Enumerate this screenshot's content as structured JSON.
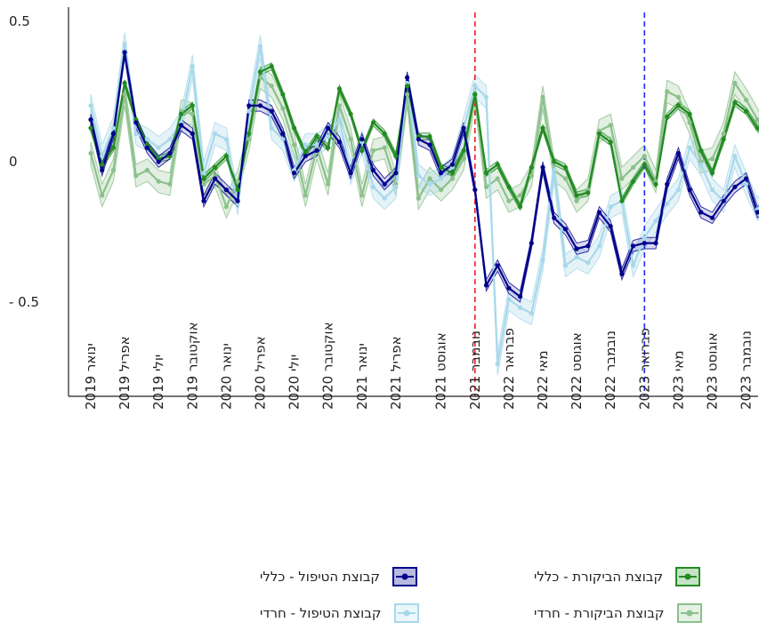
{
  "chart_data": {
    "type": "line",
    "title": "",
    "xlabel": "",
    "ylabel": "",
    "ylim": [
      -0.85,
      0.55
    ],
    "y_ticks": [
      {
        "value": 0.5,
        "label": "0.5"
      },
      {
        "value": 0,
        "label": "0"
      },
      {
        "value": -0.5,
        "label": "- 0.5"
      }
    ],
    "x_start": "2019-01",
    "x_tick_labels": [
      "ינואר 2019",
      "אפריל 2019",
      "יולי 2019",
      "אוקטובר 2019",
      "ינואר 2020",
      "אפריל 2020",
      "יולי 2020",
      "אוקטובר 2020",
      "ינואר 2021",
      "אפריל 2021",
      "אוגוסט 2021",
      "נובמבר 2021",
      "פברואר 2022",
      "מאי 2022",
      "אוגוסט 2022",
      "נובמבר 2022",
      "פברואר 2023",
      "מאי 2023",
      "אוגוסט 2023",
      "נובמבר 2023"
    ],
    "x_tick_months": [
      "2019-01",
      "2019-04",
      "2019-07",
      "2019-10",
      "2020-01",
      "2020-04",
      "2020-07",
      "2020-10",
      "2021-01",
      "2021-04",
      "2021-08",
      "2021-11",
      "2022-02",
      "2022-05",
      "2022-08",
      "2022-11",
      "2023-02",
      "2023-05",
      "2023-08",
      "2023-11"
    ],
    "vlines": [
      {
        "month": "2021-11",
        "color": "#e8202a"
      },
      {
        "month": "2023-02",
        "color": "#1f2bea"
      }
    ],
    "series": [
      {
        "name": "קבוצת הביקורת - כללי",
        "color": "#228b22",
        "band": "#228b22",
        "band_opacity": 0.18,
        "band_half": 0.012,
        "values": [
          0.12,
          -0.01,
          0.05,
          0.28,
          0.15,
          0.06,
          0.01,
          0.02,
          0.17,
          0.2,
          -0.06,
          -0.02,
          0.02,
          -0.1,
          0.1,
          0.32,
          0.34,
          0.24,
          0.12,
          0.03,
          0.09,
          0.05,
          0.26,
          0.17,
          0.04,
          0.14,
          0.1,
          0.02,
          0.27,
          0.09,
          0.09,
          -0.02,
          -0.04,
          0.04,
          0.24,
          -0.04,
          -0.01,
          -0.09,
          -0.16,
          -0.02,
          0.12,
          0.0,
          -0.02,
          -0.12,
          -0.11,
          0.1,
          0.07,
          -0.14,
          -0.07,
          -0.01,
          -0.08,
          0.16,
          0.2,
          0.17,
          0.04,
          -0.04,
          0.08,
          0.21,
          0.18,
          0.12,
          0.12
        ]
      },
      {
        "name": "קבוצת הביקורת - חרדי",
        "color": "#8cc08c",
        "band": "#8cc08c",
        "band_opacity": 0.25,
        "band_half": 0.04,
        "values": [
          0.03,
          -0.12,
          -0.03,
          0.24,
          -0.05,
          -0.03,
          -0.07,
          -0.08,
          0.18,
          0.17,
          -0.08,
          -0.05,
          -0.16,
          -0.07,
          0.08,
          0.3,
          0.27,
          0.19,
          0.06,
          -0.12,
          0.05,
          -0.08,
          0.2,
          0.08,
          -0.12,
          0.04,
          0.05,
          -0.08,
          0.24,
          -0.13,
          -0.06,
          -0.1,
          -0.06,
          0.01,
          0.24,
          -0.09,
          -0.06,
          -0.14,
          -0.12,
          -0.05,
          0.23,
          -0.03,
          -0.06,
          -0.14,
          -0.1,
          0.11,
          0.13,
          -0.06,
          -0.02,
          0.02,
          -0.07,
          0.25,
          0.23,
          0.14,
          0.0,
          0.01,
          0.1,
          0.28,
          0.22,
          0.15,
          0.07
        ]
      },
      {
        "name": "קבוצת הטיפול - כללי",
        "color": "#00008b",
        "band": "#00008b",
        "band_opacity": 0.15,
        "band_half": 0.02,
        "values": [
          0.15,
          -0.03,
          0.1,
          0.39,
          0.14,
          0.05,
          0.0,
          0.03,
          0.13,
          0.1,
          -0.14,
          -0.06,
          -0.1,
          -0.14,
          0.2,
          0.2,
          0.18,
          0.1,
          -0.04,
          0.02,
          0.04,
          0.12,
          0.07,
          -0.04,
          0.08,
          -0.03,
          -0.08,
          -0.04,
          0.3,
          0.08,
          0.06,
          -0.04,
          -0.01,
          0.12,
          -0.1,
          -0.44,
          -0.37,
          -0.45,
          -0.48,
          -0.29,
          -0.02,
          -0.2,
          -0.24,
          -0.31,
          -0.3,
          -0.18,
          -0.23,
          -0.4,
          -0.3,
          -0.29,
          -0.29,
          -0.08,
          0.03,
          -0.1,
          -0.18,
          -0.2,
          -0.14,
          -0.09,
          -0.06,
          -0.18,
          -0.15
        ]
      },
      {
        "name": "קבוצת הטיפול - חרדי",
        "color": "#a8d8ea",
        "band": "#a8d8ea",
        "band_opacity": 0.3,
        "band_half": 0.04,
        "values": [
          0.2,
          0.02,
          0.12,
          0.42,
          0.1,
          0.08,
          0.05,
          0.08,
          0.14,
          0.34,
          -0.04,
          0.1,
          0.08,
          -0.15,
          0.18,
          0.41,
          0.12,
          0.08,
          -0.03,
          0.06,
          0.06,
          0.09,
          0.15,
          -0.04,
          0.07,
          -0.09,
          -0.13,
          -0.09,
          0.28,
          -0.05,
          -0.08,
          -0.06,
          -0.02,
          0.12,
          0.27,
          0.23,
          -0.72,
          -0.49,
          -0.52,
          -0.54,
          -0.35,
          -0.03,
          -0.37,
          -0.34,
          -0.36,
          -0.3,
          -0.16,
          -0.14,
          -0.37,
          -0.27,
          -0.21,
          -0.15,
          -0.1,
          0.05,
          -0.01,
          -0.1,
          -0.14,
          0.02,
          -0.08,
          -0.17,
          -0.11
        ]
      }
    ],
    "legend": {
      "position": "bottom",
      "items": [
        {
          "label": "קבוצת הטיפול - כללי",
          "color": "#00008b",
          "fill": "#b7b9e0"
        },
        {
          "label": "קבוצת הביקורת - כללי",
          "color": "#228b22",
          "fill": "#c4e3c4"
        },
        {
          "label": "קבוצת הטיפול - חרדי",
          "color": "#a8d8ea",
          "fill": "#ecf7fb"
        },
        {
          "label": "קבוצת הביקורת - חרדי",
          "color": "#8cc08c",
          "fill": "#e4f1e4"
        }
      ]
    }
  }
}
